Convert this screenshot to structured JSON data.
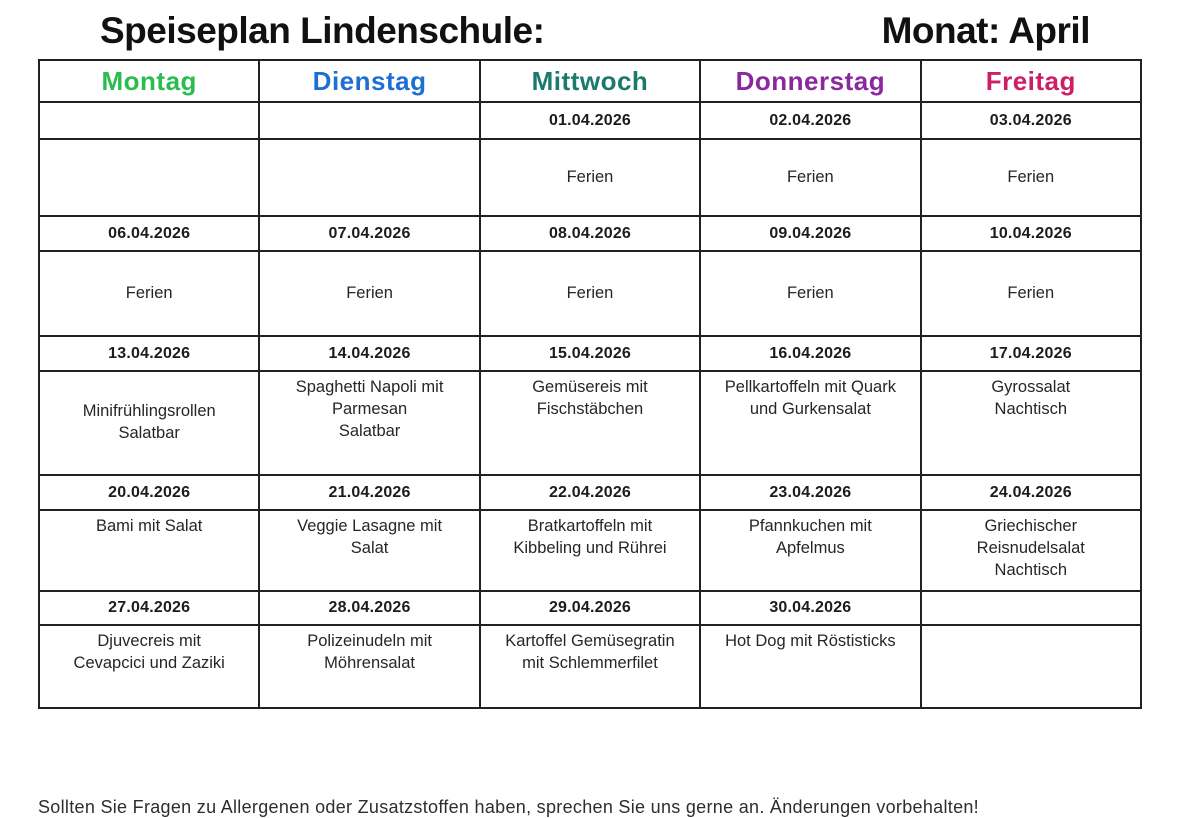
{
  "title": {
    "left": "Speiseplan Lindenschule:",
    "right": "Monat: April"
  },
  "table": {
    "days": [
      {
        "label": "Montag",
        "color": "#29bd4f"
      },
      {
        "label": "Dienstag",
        "color": "#1d70d2"
      },
      {
        "label": "Mittwoch",
        "color": "#1a7a6c"
      },
      {
        "label": "Donnerstag",
        "color": "#8b28a0"
      },
      {
        "label": "Freitag",
        "color": "#cb2065"
      }
    ],
    "weeks": [
      {
        "dates": [
          "",
          "",
          "01.04.2026",
          "02.04.2026",
          "03.04.2026"
        ],
        "meals": [
          "",
          "",
          "Ferien",
          "Ferien",
          "Ferien"
        ]
      },
      {
        "dates": [
          "06.04.2026",
          "07.04.2026",
          "08.04.2026",
          "09.04.2026",
          "10.04.2026"
        ],
        "meals": [
          "Ferien",
          "Ferien",
          "Ferien",
          "Ferien",
          "Ferien"
        ]
      },
      {
        "dates": [
          "13.04.2026",
          "14.04.2026",
          "15.04.2026",
          "16.04.2026",
          "17.04.2026"
        ],
        "meals": [
          "Minifrühlingsrollen\nSalatbar",
          "Spaghetti Napoli mit\nParmesan\nSalatbar",
          "Gemüsereis mit\nFischstäbchen",
          "Pellkartoffeln mit Quark\nund Gurkensalat",
          "Gyrossalat\nNachtisch"
        ]
      },
      {
        "dates": [
          "20.04.2026",
          "21.04.2026",
          "22.04.2026",
          "23.04.2026",
          "24.04.2026"
        ],
        "meals": [
          "Bami mit Salat",
          "Veggie Lasagne mit\nSalat",
          "Bratkartoffeln mit\nKibbeling und Rührei",
          "Pfannkuchen mit\nApfelmus",
          "Griechischer\nReisnudelsalat\nNachtisch"
        ]
      },
      {
        "dates": [
          "27.04.2026",
          "28.04.2026",
          "29.04.2026",
          "30.04.2026",
          ""
        ],
        "meals": [
          "Djuvecreis mit\nCevapcici und Zaziki",
          "Polizeinudeln mit\nMöhrensalat",
          "Kartoffel Gemüsegratin\nmit Schlemmerfilet",
          "Hot Dog mit Röstisticks",
          ""
        ]
      }
    ]
  },
  "footer": "Sollten Sie Fragen zu Allergenen oder Zusatzstoffen haben, sprechen Sie uns gerne an. Änderungen vorbehalten!"
}
